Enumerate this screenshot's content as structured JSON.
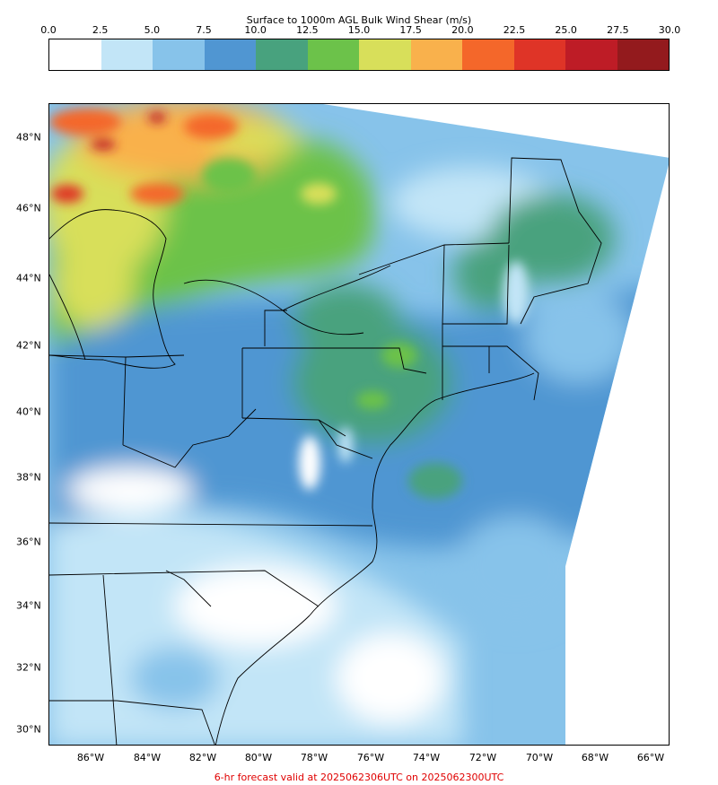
{
  "colorbar": {
    "title": "Surface to 1000m AGL Bulk Wind Shear (m/s)",
    "tick_labels": [
      "0.0",
      "2.5",
      "5.0",
      "7.5",
      "10.0",
      "12.5",
      "15.0",
      "17.5",
      "20.0",
      "22.5",
      "25.0",
      "27.5",
      "30.0"
    ],
    "colors": [
      "#ffffff",
      "#c2e5f7",
      "#87c3ea",
      "#5096d2",
      "#48a27e",
      "#6cc24a",
      "#d8df5a",
      "#f9b14c",
      "#f4672a",
      "#df3427",
      "#be1c26",
      "#931a1d"
    ]
  },
  "map": {
    "lat_labels": [
      "48°N",
      "46°N",
      "44°N",
      "42°N",
      "40°N",
      "38°N",
      "36°N",
      "34°N",
      "32°N",
      "30°N"
    ],
    "lon_labels": [
      "86°W",
      "84°W",
      "82°W",
      "80°W",
      "78°W",
      "76°W",
      "74°W",
      "72°W",
      "70°W",
      "68°W",
      "66°W"
    ],
    "region": "Eastern United States / Great Lakes / Northeast",
    "dominant_fields": {
      "north_great_lakes": "15.0-22.5",
      "central_appalachians": "10.0-15.0",
      "mid_atlantic": "7.5-12.5",
      "southeast": "0.0-5.0",
      "offshore_atlantic": "2.5-10.0"
    }
  },
  "footer": {
    "text": "6-hr forecast valid at 2025062306UTC on 2025062300UTC"
  }
}
